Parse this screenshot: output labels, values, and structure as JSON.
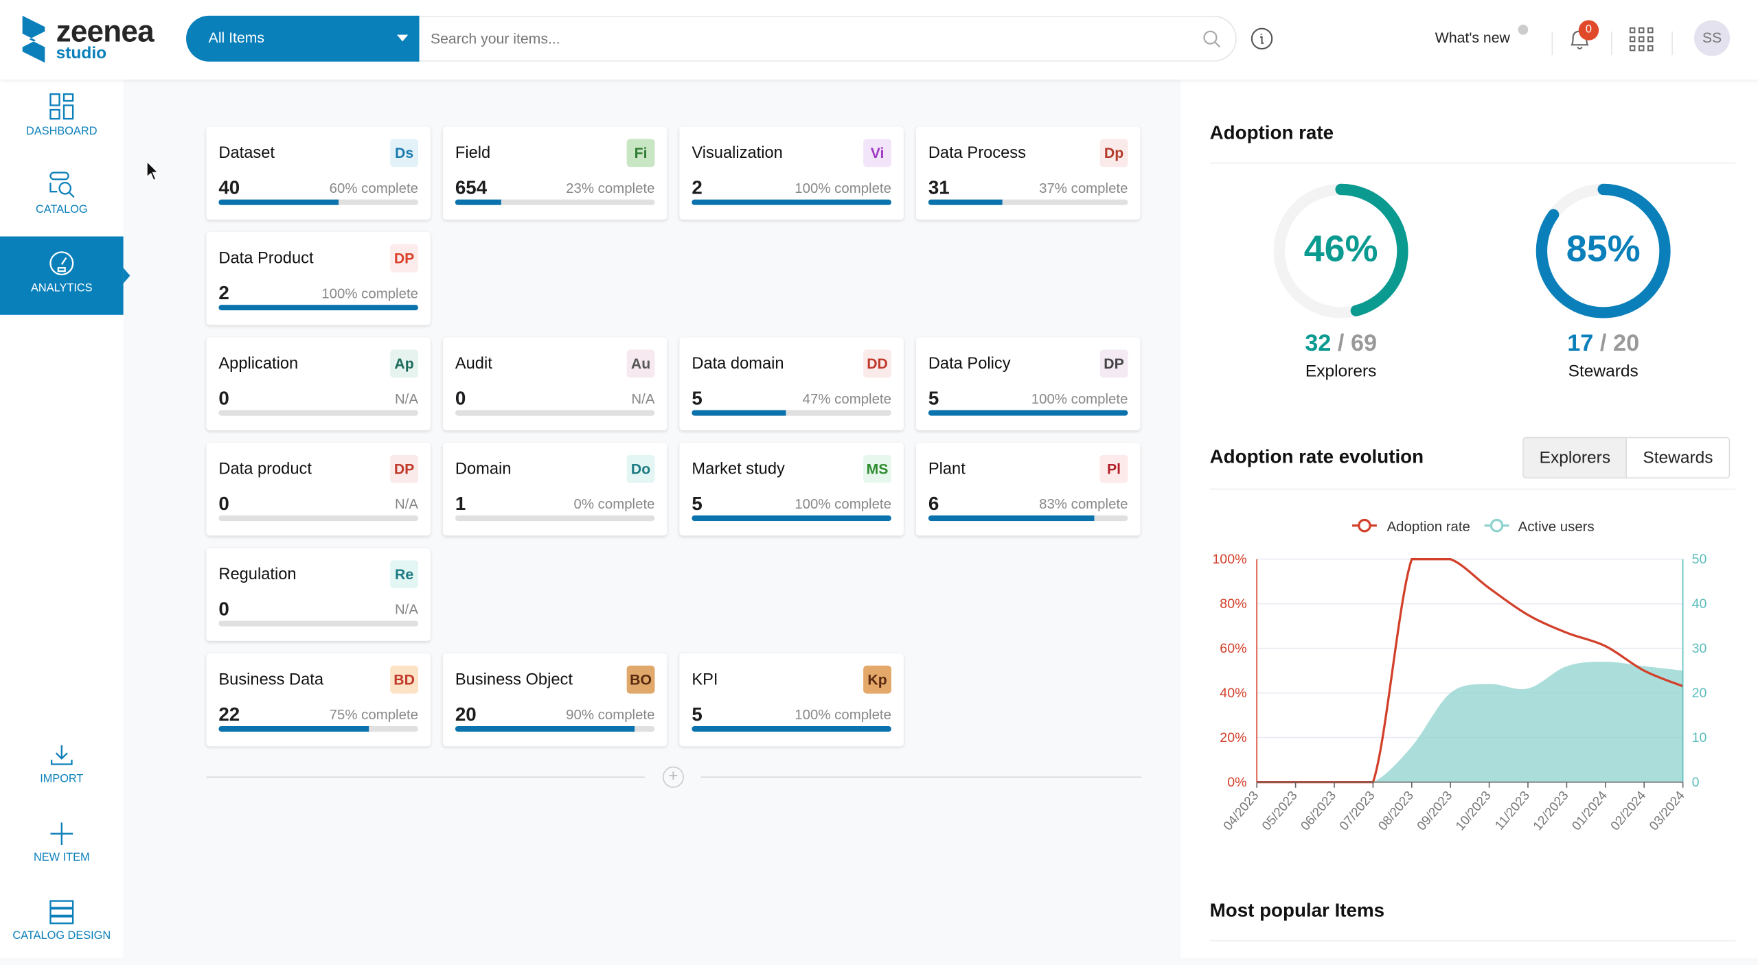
{
  "header": {
    "logo_main": "zeenea",
    "logo_sub": "studio",
    "type_select": "All Items",
    "search_placeholder": "Search your items...",
    "whats_new": "What's new",
    "notification_count": "0",
    "user_initials": "SS"
  },
  "sidebar": {
    "items": [
      {
        "label": "DASHBOARD"
      },
      {
        "label": "CATALOG"
      },
      {
        "label": "ANALYTICS",
        "active": true
      },
      {
        "label": "IMPORT"
      },
      {
        "label": "NEW ITEM"
      },
      {
        "label": "CATALOG DESIGN"
      }
    ]
  },
  "groups": [
    [
      {
        "title": "Dataset",
        "badge": "Ds",
        "count": "40",
        "progress": "60% complete",
        "pct": 60,
        "bg": "#e3f1f8",
        "fg": "#1a7bb0"
      },
      {
        "title": "Field",
        "badge": "Fi",
        "count": "654",
        "progress": "23% complete",
        "pct": 23,
        "bg": "#c9e6c4",
        "fg": "#2e7d32"
      },
      {
        "title": "Visualization",
        "badge": "Vi",
        "count": "2",
        "progress": "100% complete",
        "pct": 100,
        "bg": "#f3e5f9",
        "fg": "#9c3bc4"
      },
      {
        "title": "Data Process",
        "badge": "Dp",
        "count": "31",
        "progress": "37% complete",
        "pct": 37,
        "bg": "#fbeaea",
        "fg": "#b23a2a"
      },
      {
        "title": "Data Product",
        "badge": "DP",
        "count": "2",
        "progress": "100% complete",
        "pct": 100,
        "bg": "#fdecec",
        "fg": "#d9412b"
      }
    ],
    [
      {
        "title": "Application",
        "badge": "Ap",
        "count": "0",
        "progress": "N/A",
        "pct": 0,
        "bg": "#e6f3ef",
        "fg": "#1c6b5a"
      },
      {
        "title": "Audit",
        "badge": "Au",
        "count": "0",
        "progress": "N/A",
        "pct": 0,
        "bg": "#f6eaf0",
        "fg": "#555"
      },
      {
        "title": "Data domain",
        "badge": "DD",
        "count": "5",
        "progress": "47% complete",
        "pct": 47,
        "bg": "#fbeaea",
        "fg": "#c0392b"
      },
      {
        "title": "Data Policy",
        "badge": "DP",
        "count": "5",
        "progress": "100% complete",
        "pct": 100,
        "bg": "#f3eaf3",
        "fg": "#444"
      },
      {
        "title": "Data product",
        "badge": "DP",
        "count": "0",
        "progress": "N/A",
        "pct": 0,
        "bg": "#fbeaea",
        "fg": "#c0392b"
      },
      {
        "title": "Domain",
        "badge": "Do",
        "count": "1",
        "progress": "0% complete",
        "pct": 0,
        "bg": "#e4f6f4",
        "fg": "#1b7a82"
      },
      {
        "title": "Market study",
        "badge": "MS",
        "count": "5",
        "progress": "100% complete",
        "pct": 100,
        "bg": "#e7f7ee",
        "fg": "#2e8b2e"
      },
      {
        "title": "Plant",
        "badge": "Pl",
        "count": "6",
        "progress": "83% complete",
        "pct": 83,
        "bg": "#fdeaea",
        "fg": "#b2202a"
      },
      {
        "title": "Regulation",
        "badge": "Re",
        "count": "0",
        "progress": "N/A",
        "pct": 0,
        "bg": "#e4f6f4",
        "fg": "#1b7a82"
      }
    ],
    [
      {
        "title": "Business Data",
        "badge": "BD",
        "count": "22",
        "progress": "75% complete",
        "pct": 75,
        "bg": "#fde3c6",
        "fg": "#c0392b"
      },
      {
        "title": "Business Object",
        "badge": "BO",
        "count": "20",
        "progress": "90% complete",
        "pct": 90,
        "bg": "#e0a86b",
        "fg": "#5a2a10"
      },
      {
        "title": "KPI",
        "badge": "Kp",
        "count": "5",
        "progress": "100% complete",
        "pct": 100,
        "bg": "#e3a86a",
        "fg": "#5a2a10"
      }
    ]
  ],
  "adoption": {
    "title": "Adoption rate",
    "explorers": {
      "pct_label": "46%",
      "pct": 46,
      "num": "32",
      "den": "69",
      "sep": "/",
      "label": "Explorers",
      "color": "#0a9a90"
    },
    "stewards": {
      "pct_label": "85%",
      "pct": 85,
      "num": "17",
      "den": "20",
      "sep": "/",
      "label": "Stewards",
      "color": "#0a7fba"
    }
  },
  "evolution": {
    "title": "Adoption rate evolution",
    "tabs": [
      "Explorers",
      "Stewards"
    ],
    "active_tab": "Explorers"
  },
  "popular": {
    "title": "Most popular Items"
  },
  "chart_data": {
    "type": "line",
    "categories": [
      "04/2023",
      "05/2023",
      "06/2023",
      "07/2023",
      "08/2023",
      "09/2023",
      "10/2023",
      "11/2023",
      "12/2023",
      "01/2024",
      "02/2024",
      "03/2024"
    ],
    "series": [
      {
        "name": "Adoption rate",
        "axis": "left",
        "color": "#d2402a",
        "values": [
          0,
          0,
          0,
          0,
          100,
          100,
          87,
          75,
          67,
          61,
          50,
          43
        ]
      },
      {
        "name": "Active users",
        "axis": "right",
        "type": "area",
        "color": "#8fd3cf",
        "values": [
          0,
          0,
          0,
          0,
          8,
          20,
          22,
          21,
          26,
          27,
          26,
          25
        ]
      }
    ],
    "yleft": {
      "ticks": [
        "0%",
        "20%",
        "40%",
        "60%",
        "80%",
        "100%"
      ],
      "range": [
        0,
        100
      ]
    },
    "yright": {
      "ticks": [
        "0",
        "10",
        "20",
        "30",
        "40",
        "50"
      ],
      "range": [
        0,
        50
      ]
    },
    "legend": "top-center"
  }
}
